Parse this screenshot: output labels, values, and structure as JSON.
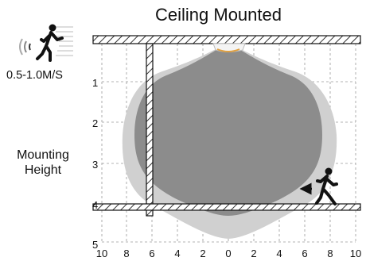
{
  "title": "Ceiling Mounted",
  "speed_label": "0.5-1.0M/S",
  "mounting_height_label": [
    "Mounting",
    "Height"
  ],
  "y_ticks": [
    "1",
    "2",
    "3",
    "4",
    "5"
  ],
  "x_ticks": [
    "10",
    "8",
    "6",
    "4",
    "2",
    "0",
    "2",
    "4",
    "6",
    "8",
    "10"
  ],
  "icons": {
    "top_left": "motion-person-walking-icon",
    "bottom_right": "person-walking-left-icon"
  },
  "colors": {
    "outer_zone": "#d0d0d0",
    "inner_zone": "#8c8c8c",
    "sensor": "#e0a040"
  }
}
